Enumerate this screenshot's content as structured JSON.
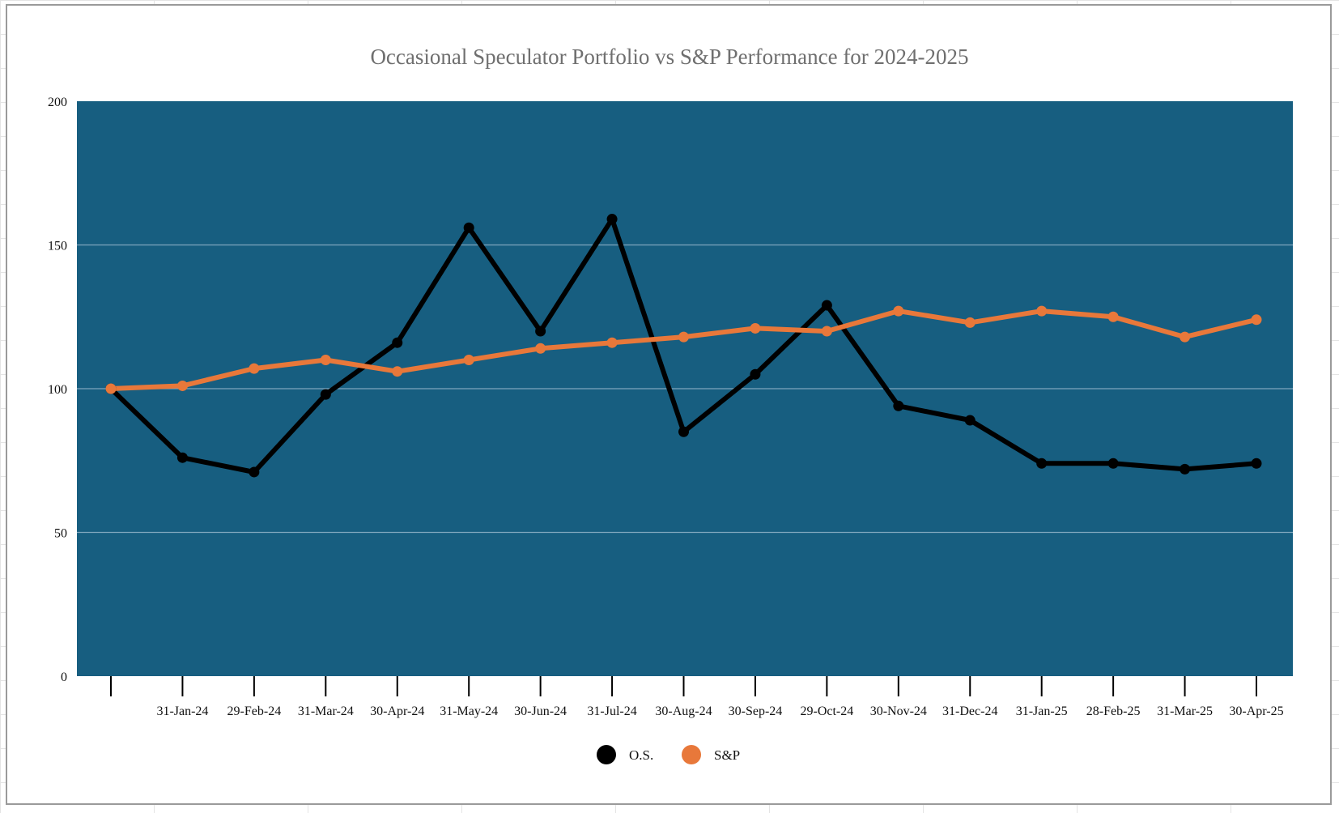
{
  "chart_data": {
    "type": "line",
    "title": "Occasional Speculator Portfolio vs S&P Performance for 2024-2025",
    "xlabel": "",
    "ylabel": "",
    "categories": [
      "",
      "31-Jan-24",
      "29-Feb-24",
      "31-Mar-24",
      "30-Apr-24",
      "31-May-24",
      "30-Jun-24",
      "31-Jul-24",
      "30-Aug-24",
      "30-Sep-24",
      "29-Oct-24",
      "30-Nov-24",
      "31-Dec-24",
      "31-Jan-25",
      "28-Feb-25",
      "31-Mar-25",
      "30-Apr-25"
    ],
    "ylim": [
      0,
      200
    ],
    "yticks": [
      0,
      50,
      100,
      150,
      200
    ],
    "grid": true,
    "legend_position": "bottom",
    "plot_background": "#175e80",
    "series": [
      {
        "name": "O.S.",
        "color": "#000000",
        "values": [
          100,
          76,
          71,
          98,
          116,
          156,
          120,
          159,
          85,
          105,
          129,
          94,
          89,
          74,
          74,
          72,
          74
        ]
      },
      {
        "name": "S&P",
        "color": "#e8783a",
        "values": [
          100,
          101,
          107,
          110,
          106,
          110,
          114,
          116,
          118,
          121,
          120,
          127,
          123,
          127,
          125,
          118,
          124
        ]
      }
    ]
  }
}
